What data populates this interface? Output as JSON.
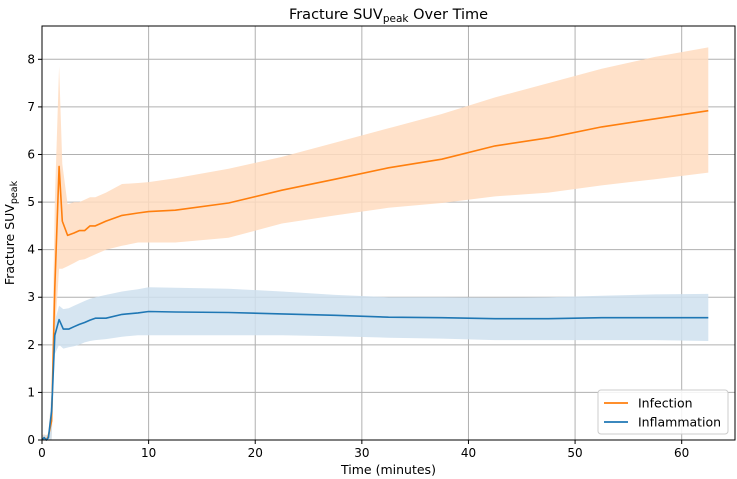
{
  "chart_data": {
    "type": "line",
    "title": "Fracture SUV",
    "title_sub": "peak",
    "title_suffix": " Over Time",
    "xlabel": "Time (minutes)",
    "ylabel": "Fracture SUV",
    "ylabel_sub": "peak",
    "xlim": [
      0,
      65
    ],
    "ylim": [
      0,
      8.7
    ],
    "x_ticks": [
      0,
      10,
      20,
      30,
      40,
      50,
      60
    ],
    "y_ticks": [
      0,
      1,
      2,
      3,
      4,
      5,
      6,
      7,
      8
    ],
    "grid": true,
    "legend_position": "lower-right",
    "series": [
      {
        "name": "Infection",
        "color": "#ff7f0e",
        "band_color": "#ffdcbf",
        "points": [
          [
            0,
            0
          ],
          [
            0.2,
            0.05
          ],
          [
            0.4,
            0
          ],
          [
            0.6,
            0.08
          ],
          [
            0.9,
            0.4
          ],
          [
            1.2,
            3.2
          ],
          [
            1.6,
            5.75
          ],
          [
            1.9,
            4.6
          ],
          [
            2.4,
            4.3
          ],
          [
            3.0,
            4.35
          ],
          [
            3.5,
            4.4
          ],
          [
            4.0,
            4.4
          ],
          [
            4.5,
            4.5
          ],
          [
            5.0,
            4.5
          ],
          [
            6.0,
            4.6
          ],
          [
            7.5,
            4.72
          ],
          [
            9.0,
            4.77
          ],
          [
            10.0,
            4.8
          ],
          [
            12.5,
            4.83
          ],
          [
            17.5,
            4.98
          ],
          [
            22.5,
            5.25
          ],
          [
            27.5,
            5.48
          ],
          [
            32.5,
            5.72
          ],
          [
            37.5,
            5.9
          ],
          [
            42.5,
            6.18
          ],
          [
            47.5,
            6.35
          ],
          [
            52.5,
            6.58
          ],
          [
            57.5,
            6.75
          ],
          [
            62.5,
            6.92
          ]
        ],
        "upper": [
          [
            0,
            0.1
          ],
          [
            0.2,
            0.12
          ],
          [
            0.4,
            0.1
          ],
          [
            0.6,
            0.15
          ],
          [
            0.9,
            1.0
          ],
          [
            1.2,
            5.0
          ],
          [
            1.6,
            7.85
          ],
          [
            1.9,
            5.8
          ],
          [
            2.4,
            4.95
          ],
          [
            3.0,
            5.0
          ],
          [
            3.5,
            5.0
          ],
          [
            4.0,
            5.05
          ],
          [
            4.5,
            5.1
          ],
          [
            5.0,
            5.1
          ],
          [
            6.0,
            5.2
          ],
          [
            7.5,
            5.38
          ],
          [
            9.0,
            5.4
          ],
          [
            10.0,
            5.42
          ],
          [
            12.5,
            5.5
          ],
          [
            17.5,
            5.7
          ],
          [
            22.5,
            5.95
          ],
          [
            27.5,
            6.25
          ],
          [
            32.5,
            6.55
          ],
          [
            37.5,
            6.85
          ],
          [
            42.5,
            7.2
          ],
          [
            47.5,
            7.5
          ],
          [
            52.5,
            7.8
          ],
          [
            57.5,
            8.05
          ],
          [
            62.5,
            8.25
          ]
        ],
        "lower": [
          [
            0,
            0
          ],
          [
            0.2,
            0
          ],
          [
            0.4,
            0
          ],
          [
            0.6,
            0
          ],
          [
            0.9,
            0
          ],
          [
            1.2,
            2.2
          ],
          [
            1.6,
            3.6
          ],
          [
            1.9,
            3.6
          ],
          [
            2.4,
            3.65
          ],
          [
            3.0,
            3.72
          ],
          [
            3.5,
            3.78
          ],
          [
            4.0,
            3.8
          ],
          [
            4.5,
            3.85
          ],
          [
            5.0,
            3.9
          ],
          [
            6.0,
            4.0
          ],
          [
            7.5,
            4.08
          ],
          [
            9.0,
            4.15
          ],
          [
            10.0,
            4.15
          ],
          [
            12.5,
            4.15
          ],
          [
            17.5,
            4.25
          ],
          [
            22.5,
            4.55
          ],
          [
            27.5,
            4.72
          ],
          [
            32.5,
            4.88
          ],
          [
            37.5,
            4.98
          ],
          [
            42.5,
            5.12
          ],
          [
            47.5,
            5.2
          ],
          [
            52.5,
            5.35
          ],
          [
            57.5,
            5.48
          ],
          [
            62.5,
            5.62
          ]
        ]
      },
      {
        "name": "Inflammation",
        "color": "#1f77b4",
        "band_color": "#cfe0ee",
        "points": [
          [
            0,
            0
          ],
          [
            0.2,
            0.05
          ],
          [
            0.4,
            0
          ],
          [
            0.6,
            0.05
          ],
          [
            0.9,
            0.6
          ],
          [
            1.2,
            2.2
          ],
          [
            1.6,
            2.53
          ],
          [
            2.0,
            2.33
          ],
          [
            2.5,
            2.33
          ],
          [
            3.0,
            2.38
          ],
          [
            3.5,
            2.43
          ],
          [
            4.0,
            2.47
          ],
          [
            4.5,
            2.52
          ],
          [
            5.0,
            2.56
          ],
          [
            6.0,
            2.56
          ],
          [
            7.5,
            2.64
          ],
          [
            9.0,
            2.67
          ],
          [
            10.0,
            2.7
          ],
          [
            12.5,
            2.69
          ],
          [
            17.5,
            2.68
          ],
          [
            22.5,
            2.65
          ],
          [
            27.5,
            2.62
          ],
          [
            32.5,
            2.58
          ],
          [
            37.5,
            2.57
          ],
          [
            42.5,
            2.55
          ],
          [
            47.5,
            2.55
          ],
          [
            52.5,
            2.57
          ],
          [
            57.5,
            2.57
          ],
          [
            62.5,
            2.57
          ]
        ],
        "upper": [
          [
            0,
            0.1
          ],
          [
            0.2,
            0.1
          ],
          [
            0.4,
            0.1
          ],
          [
            0.6,
            0.1
          ],
          [
            0.9,
            1.0
          ],
          [
            1.2,
            2.5
          ],
          [
            1.6,
            2.82
          ],
          [
            2.0,
            2.75
          ],
          [
            2.5,
            2.77
          ],
          [
            3.0,
            2.82
          ],
          [
            3.5,
            2.87
          ],
          [
            4.0,
            2.92
          ],
          [
            4.5,
            2.97
          ],
          [
            5.0,
            3.0
          ],
          [
            6.0,
            3.05
          ],
          [
            7.5,
            3.12
          ],
          [
            9.0,
            3.17
          ],
          [
            10.0,
            3.21
          ],
          [
            12.5,
            3.2
          ],
          [
            17.5,
            3.18
          ],
          [
            22.5,
            3.12
          ],
          [
            27.5,
            3.05
          ],
          [
            32.5,
            3.0
          ],
          [
            37.5,
            3.0
          ],
          [
            42.5,
            2.99
          ],
          [
            47.5,
            3.0
          ],
          [
            52.5,
            3.03
          ],
          [
            57.5,
            3.06
          ],
          [
            62.5,
            3.07
          ]
        ],
        "lower": [
          [
            0,
            0
          ],
          [
            0.2,
            0
          ],
          [
            0.4,
            0
          ],
          [
            0.6,
            0
          ],
          [
            0.9,
            0
          ],
          [
            1.2,
            1.8
          ],
          [
            1.6,
            2.0
          ],
          [
            2.0,
            1.92
          ],
          [
            2.5,
            1.95
          ],
          [
            3.0,
            1.97
          ],
          [
            3.5,
            2.0
          ],
          [
            4.0,
            2.05
          ],
          [
            4.5,
            2.08
          ],
          [
            5.0,
            2.1
          ],
          [
            6.0,
            2.12
          ],
          [
            7.5,
            2.17
          ],
          [
            9.0,
            2.2
          ],
          [
            10.0,
            2.2
          ],
          [
            12.5,
            2.2
          ],
          [
            17.5,
            2.2
          ],
          [
            22.5,
            2.2
          ],
          [
            27.5,
            2.18
          ],
          [
            32.5,
            2.15
          ],
          [
            37.5,
            2.13
          ],
          [
            42.5,
            2.1
          ],
          [
            47.5,
            2.1
          ],
          [
            52.5,
            2.1
          ],
          [
            57.5,
            2.1
          ],
          [
            62.5,
            2.08
          ]
        ]
      }
    ]
  }
}
